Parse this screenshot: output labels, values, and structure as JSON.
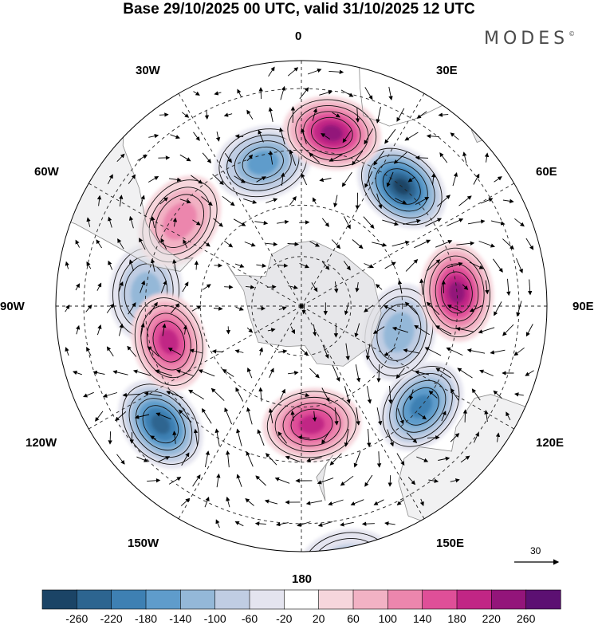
{
  "title": "Base 29/10/2025 00 UTC, valid 31/10/2025 12 UTC",
  "brand": "MODES",
  "brand_mark": "©",
  "longitude_labels": [
    {
      "id": "0",
      "text": "0"
    },
    {
      "id": "30E",
      "text": "30E"
    },
    {
      "id": "60E",
      "text": "60E"
    },
    {
      "id": "90E",
      "text": "90E"
    },
    {
      "id": "120E",
      "text": "120E"
    },
    {
      "id": "150E",
      "text": "150E"
    },
    {
      "id": "180",
      "text": "180"
    },
    {
      "id": "150W",
      "text": "150W"
    },
    {
      "id": "120W",
      "text": "120W"
    },
    {
      "id": "90W",
      "text": "90W"
    },
    {
      "id": "60W",
      "text": "60W"
    },
    {
      "id": "30W",
      "text": "30W"
    }
  ],
  "reference_vector": {
    "value": "30"
  },
  "colorbar": {
    "labels": [
      "-260",
      "-220",
      "-180",
      "-140",
      "-100",
      "-60",
      "-20",
      "20",
      "60",
      "100",
      "140",
      "180",
      "220",
      "260"
    ],
    "colors": [
      "#1b4466",
      "#2d6590",
      "#3e80b3",
      "#5f9ccb",
      "#94b8d8",
      "#c0cde3",
      "#e4e4ef",
      "#ffffff",
      "#f6d6dc",
      "#f2b2c4",
      "#ec86ad",
      "#df4f98",
      "#c12685",
      "#93157a",
      "#5c1072"
    ]
  },
  "anomaly_centers": [
    {
      "lat": -45,
      "lon": 40,
      "value": -280
    },
    {
      "lat": -47,
      "lon": -15,
      "value": -180
    },
    {
      "lat": -45,
      "lon": -85,
      "value": -130
    },
    {
      "lat": -38,
      "lon": -130,
      "value": -270
    },
    {
      "lat": -45,
      "lon": 130,
      "value": -220
    },
    {
      "lat": -60,
      "lon": 105,
      "value": -150
    },
    {
      "lat": -20,
      "lon": 170,
      "value": -100
    },
    {
      "lat": -40,
      "lon": 10,
      "value": 240
    },
    {
      "lat": -47,
      "lon": -55,
      "value": 120
    },
    {
      "lat": -50,
      "lon": -105,
      "value": 210
    },
    {
      "lat": -45,
      "lon": 85,
      "value": 270
    },
    {
      "lat": -55,
      "lon": 175,
      "value": 200
    }
  ]
}
